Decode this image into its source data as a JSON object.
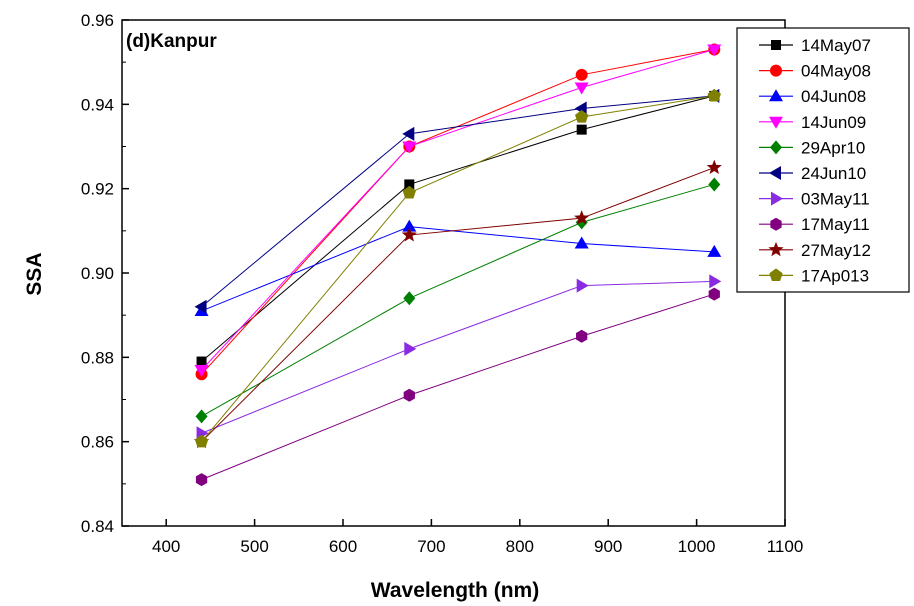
{
  "chart_data": {
    "type": "line",
    "panel_label": "(d)Kanpur",
    "xlabel": "Wavelength (nm)",
    "ylabel": "SSA",
    "xlim": [
      350,
      1100
    ],
    "ylim": [
      0.84,
      0.96
    ],
    "xticks": [
      400,
      500,
      600,
      700,
      800,
      900,
      1000,
      1100
    ],
    "yticks": [
      0.84,
      0.86,
      0.88,
      0.9,
      0.92,
      0.94,
      0.96
    ],
    "ytick_labels": [
      "0.84",
      "0.86",
      "0.88",
      "0.90",
      "0.92",
      "0.94",
      "0.96"
    ],
    "x": [
      440,
      675,
      870,
      1020
    ],
    "legend_position": "top-right",
    "grid": false,
    "series": [
      {
        "name": "14May07",
        "color": "#000000",
        "marker": "square",
        "values": [
          0.879,
          0.921,
          0.934,
          0.942
        ]
      },
      {
        "name": "04May08",
        "color": "#ff0000",
        "marker": "circle",
        "values": [
          0.876,
          0.93,
          0.947,
          0.953
        ]
      },
      {
        "name": "04Jun08",
        "color": "#0000ff",
        "marker": "triangle-up",
        "values": [
          0.891,
          0.911,
          0.907,
          0.905
        ]
      },
      {
        "name": "14Jun09",
        "color": "#ff00ff",
        "marker": "triangle-down",
        "values": [
          0.877,
          0.93,
          0.944,
          0.953
        ]
      },
      {
        "name": "29Apr10",
        "color": "#008000",
        "marker": "diamond",
        "values": [
          0.866,
          0.894,
          0.912,
          0.921
        ]
      },
      {
        "name": "24Jun10",
        "color": "#000080",
        "marker": "triangle-left",
        "values": [
          0.892,
          0.933,
          0.939,
          0.942
        ]
      },
      {
        "name": "03May11",
        "color": "#8a2be2",
        "marker": "triangle-right",
        "values": [
          0.862,
          0.882,
          0.897,
          0.898
        ]
      },
      {
        "name": "17May11",
        "color": "#800080",
        "marker": "hexagon",
        "values": [
          0.851,
          0.871,
          0.885,
          0.895
        ]
      },
      {
        "name": "27May12",
        "color": "#800000",
        "marker": "star",
        "values": [
          0.86,
          0.909,
          0.913,
          0.925
        ]
      },
      {
        "name": "17Ap013",
        "color": "#808000",
        "marker": "pentagon",
        "values": [
          0.86,
          0.919,
          0.937,
          0.942
        ]
      }
    ]
  }
}
